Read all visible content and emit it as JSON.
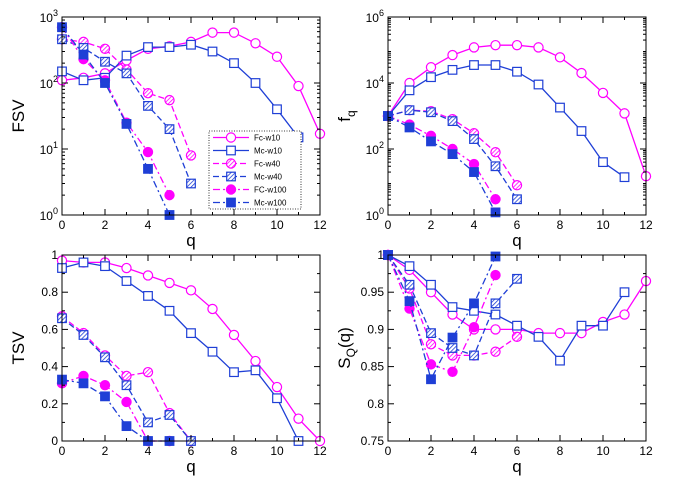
{
  "figure": {
    "style_key": {
      "Fc-w10": {
        "color": "#ff00ff",
        "marker": "circle",
        "fill": "open",
        "dash": "solid"
      },
      "Mc-w10": {
        "color": "#1f3fd6",
        "marker": "square",
        "fill": "open",
        "dash": "solid"
      },
      "Fc-w40": {
        "color": "#ff00ff",
        "marker": "circle",
        "fill": "hatch",
        "dash": "dash"
      },
      "Mc-w40": {
        "color": "#1f3fd6",
        "marker": "square",
        "fill": "hatch",
        "dash": "dash"
      },
      "FC-w100": {
        "color": "#ff00ff",
        "marker": "circle",
        "fill": "solid",
        "dash": "dashdot"
      },
      "Mc-w100": {
        "color": "#1f3fd6",
        "marker": "square",
        "fill": "solid",
        "dash": "dashdot"
      }
    }
  },
  "chart_data": [
    {
      "id": "fsv",
      "type": "line",
      "ylabel": "FSV",
      "ylabel_sub": "",
      "xlabel": "q",
      "yscale": "log",
      "xlim": [
        0,
        12
      ],
      "ylim": [
        1,
        1000
      ],
      "x_ticks": [
        0,
        2,
        4,
        6,
        8,
        10,
        12
      ],
      "x_tick_labels": [
        "0",
        "2",
        "4",
        "6",
        "8",
        "10",
        "12"
      ],
      "y_ticks": [
        1,
        10,
        100,
        1000
      ],
      "y_tick_labels": [
        {
          "base": "10",
          "exp": "0"
        },
        {
          "base": "10",
          "exp": "1"
        },
        {
          "base": "10",
          "exp": "2"
        },
        {
          "base": "10",
          "exp": "3"
        }
      ],
      "legend": {
        "position": "center-lower",
        "entries": [
          "Fc-w10",
          "Mc-w10",
          "Fc-w40",
          "Mc-w40",
          "FC-w100",
          "Mc-w100"
        ]
      },
      "series": [
        {
          "name": "Fc-w10",
          "x": [
            0,
            1,
            2,
            3,
            4,
            5,
            6,
            7,
            8,
            9,
            10,
            11,
            12
          ],
          "y": [
            110,
            120,
            140,
            220,
            330,
            360,
            420,
            580,
            580,
            400,
            250,
            90,
            17
          ]
        },
        {
          "name": "Mc-w10",
          "x": [
            0,
            1,
            2,
            3,
            4,
            5,
            6,
            7,
            8,
            9,
            10,
            11
          ],
          "y": [
            150,
            110,
            120,
            260,
            350,
            350,
            380,
            300,
            200,
            100,
            40,
            15
          ]
        },
        {
          "name": "Fc-w40",
          "x": [
            0,
            1,
            2,
            3,
            4,
            5,
            6
          ],
          "y": [
            460,
            420,
            330,
            160,
            70,
            55,
            8
          ]
        },
        {
          "name": "Mc-w40",
          "x": [
            0,
            1,
            2,
            3,
            4,
            5,
            6
          ],
          "y": [
            460,
            340,
            210,
            140,
            45,
            20,
            3
          ]
        },
        {
          "name": "FC-w100",
          "x": [
            0,
            1,
            2,
            3,
            4,
            5
          ],
          "y": [
            700,
            230,
            110,
            25,
            9,
            2
          ]
        },
        {
          "name": "Mc-w100",
          "x": [
            0,
            1,
            2,
            3,
            4,
            5
          ],
          "y": [
            700,
            270,
            100,
            24,
            5,
            1
          ]
        }
      ]
    },
    {
      "id": "fq",
      "type": "line",
      "ylabel": "f",
      "ylabel_sub": "q",
      "xlabel": "q",
      "yscale": "log",
      "xlim": [
        0,
        12
      ],
      "ylim": [
        1,
        1000000
      ],
      "x_ticks": [
        0,
        2,
        4,
        6,
        8,
        10,
        12
      ],
      "x_tick_labels": [
        "0",
        "2",
        "4",
        "6",
        "8",
        "10",
        "12"
      ],
      "y_ticks": [
        1,
        100,
        10000,
        1000000
      ],
      "y_tick_labels": [
        {
          "base": "10",
          "exp": "0"
        },
        {
          "base": "10",
          "exp": "2"
        },
        {
          "base": "10",
          "exp": "4"
        },
        {
          "base": "10",
          "exp": "6"
        }
      ],
      "series": [
        {
          "name": "Fc-w10",
          "x": [
            0,
            1,
            2,
            3,
            4,
            5,
            6,
            7,
            8,
            9,
            10,
            11,
            12
          ],
          "y": [
            1000,
            10000,
            30000,
            70000,
            120000,
            140000,
            140000,
            120000,
            60000,
            20000,
            5000,
            1200,
            15
          ]
        },
        {
          "name": "Mc-w10",
          "x": [
            0,
            1,
            2,
            3,
            4,
            5,
            6,
            7,
            8,
            9,
            10,
            11
          ],
          "y": [
            1000,
            6000,
            15000,
            25000,
            35000,
            35000,
            22000,
            9000,
            1800,
            350,
            40,
            14
          ]
        },
        {
          "name": "Fc-w40",
          "x": [
            0,
            1,
            2,
            3,
            4,
            5,
            6
          ],
          "y": [
            1000,
            1500,
            1400,
            800,
            300,
            80,
            8
          ]
        },
        {
          "name": "Mc-w40",
          "x": [
            0,
            1,
            2,
            3,
            4,
            5,
            6
          ],
          "y": [
            1000,
            1500,
            1300,
            700,
            200,
            30,
            3
          ]
        },
        {
          "name": "FC-w100",
          "x": [
            0,
            1,
            2,
            3,
            4,
            5
          ],
          "y": [
            1000,
            550,
            250,
            100,
            35,
            3
          ]
        },
        {
          "name": "Mc-w100",
          "x": [
            0,
            1,
            2,
            3,
            4,
            5
          ],
          "y": [
            1000,
            450,
            170,
            70,
            20,
            1.2
          ]
        }
      ]
    },
    {
      "id": "tsv",
      "type": "line",
      "ylabel": "TSV",
      "ylabel_sub": "",
      "xlabel": "q",
      "yscale": "linear",
      "xlim": [
        0,
        12
      ],
      "ylim": [
        0,
        1
      ],
      "x_ticks": [
        0,
        2,
        4,
        6,
        8,
        10,
        12
      ],
      "x_tick_labels": [
        "0",
        "2",
        "4",
        "6",
        "8",
        "10",
        "12"
      ],
      "y_ticks": [
        0,
        0.2,
        0.4,
        0.6,
        0.8,
        1
      ],
      "y_tick_labels": [
        "0",
        "0.2",
        "0.4",
        "0.6",
        "0.8",
        "1"
      ],
      "series": [
        {
          "name": "Fc-w10",
          "x": [
            0,
            1,
            2,
            3,
            4,
            5,
            6,
            7,
            8,
            9,
            10,
            11,
            12
          ],
          "y": [
            0.97,
            0.96,
            0.96,
            0.93,
            0.89,
            0.85,
            0.81,
            0.71,
            0.57,
            0.43,
            0.29,
            0.12,
            0
          ]
        },
        {
          "name": "Mc-w10",
          "x": [
            0,
            1,
            2,
            3,
            4,
            5,
            6,
            7,
            8,
            9,
            10,
            11
          ],
          "y": [
            0.93,
            0.96,
            0.94,
            0.86,
            0.78,
            0.7,
            0.58,
            0.48,
            0.37,
            0.38,
            0.23,
            0
          ]
        },
        {
          "name": "Fc-w40",
          "x": [
            0,
            1,
            2,
            3,
            4,
            5,
            6
          ],
          "y": [
            0.67,
            0.58,
            0.46,
            0.35,
            0.37,
            0.15,
            0
          ]
        },
        {
          "name": "Mc-w40",
          "x": [
            0,
            1,
            2,
            3,
            4,
            5,
            6
          ],
          "y": [
            0.66,
            0.57,
            0.45,
            0.3,
            0.1,
            0.14,
            0
          ]
        },
        {
          "name": "FC-w100",
          "x": [
            0,
            1,
            2,
            3,
            4,
            5
          ],
          "y": [
            0.31,
            0.35,
            0.3,
            0.21,
            0,
            0
          ]
        },
        {
          "name": "Mc-w100",
          "x": [
            0,
            1,
            2,
            3,
            4,
            5
          ],
          "y": [
            0.33,
            0.31,
            0.24,
            0.08,
            0,
            0
          ]
        }
      ]
    },
    {
      "id": "sq",
      "type": "line",
      "ylabel": "S",
      "ylabel_sub": "Q",
      "ylabel_suffix": "(q)",
      "xlabel": "q",
      "yscale": "linear",
      "xlim": [
        0,
        12
      ],
      "ylim": [
        0.75,
        1
      ],
      "x_ticks": [
        0,
        2,
        4,
        6,
        8,
        10,
        12
      ],
      "x_tick_labels": [
        "0",
        "2",
        "4",
        "6",
        "8",
        "10",
        "12"
      ],
      "y_ticks": [
        0.75,
        0.8,
        0.85,
        0.9,
        0.95,
        1
      ],
      "y_tick_labels": [
        "0.75",
        "0.8",
        "0.85",
        "0.9",
        "0.95",
        "1"
      ],
      "series": [
        {
          "name": "Fc-w10",
          "x": [
            0,
            1,
            2,
            3,
            4,
            5,
            6,
            7,
            8,
            9,
            10,
            11,
            12
          ],
          "y": [
            1,
            0.98,
            0.95,
            0.92,
            0.9,
            0.9,
            0.9,
            0.895,
            0.895,
            0.895,
            0.91,
            0.92,
            0.965
          ]
        },
        {
          "name": "Mc-w10",
          "x": [
            0,
            1,
            2,
            3,
            4,
            5,
            6,
            7,
            8,
            9,
            10,
            11
          ],
          "y": [
            1,
            0.985,
            0.96,
            0.93,
            0.925,
            0.92,
            0.905,
            0.89,
            0.858,
            0.905,
            0.905,
            0.95
          ]
        },
        {
          "name": "Fc-w40",
          "x": [
            0,
            1,
            2,
            3,
            4,
            5,
            6
          ],
          "y": [
            1,
            0.955,
            0.88,
            0.865,
            0.865,
            0.87,
            0.89
          ]
        },
        {
          "name": "Mc-w40",
          "x": [
            0,
            1,
            2,
            3,
            4,
            5,
            6
          ],
          "y": [
            1,
            0.96,
            0.895,
            0.875,
            0.865,
            0.935,
            0.968
          ]
        },
        {
          "name": "FC-w100",
          "x": [
            0,
            1,
            2,
            3,
            4,
            5
          ],
          "y": [
            1,
            0.928,
            0.853,
            0.843,
            0.903,
            0.973
          ]
        },
        {
          "name": "Mc-w100",
          "x": [
            0,
            1,
            2,
            3,
            4,
            5
          ],
          "y": [
            1,
            0.938,
            0.833,
            0.889,
            0.935,
            0.998
          ]
        }
      ]
    }
  ]
}
